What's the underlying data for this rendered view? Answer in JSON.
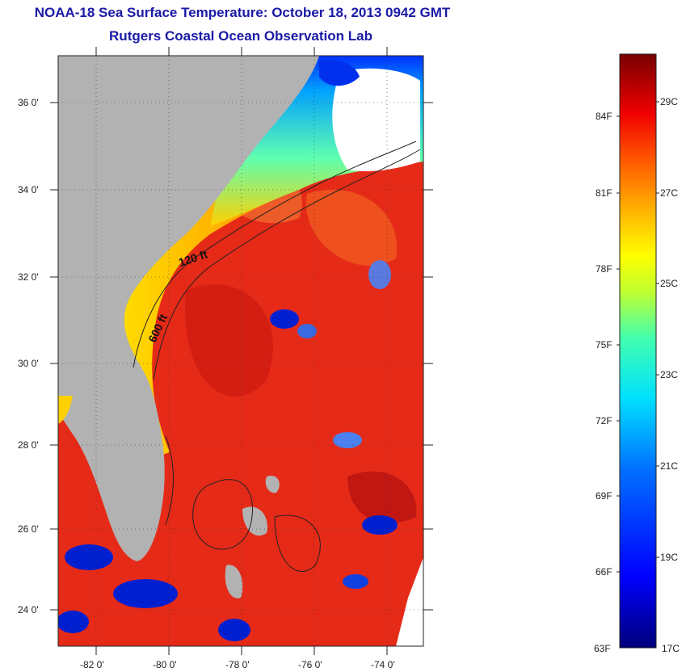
{
  "title": "NOAA-18 Sea Surface Temperature:  October 18, 2013 0942 GMT",
  "subtitle": "Rutgers Coastal Ocean Observation Lab",
  "map": {
    "lat_labels": [
      "36 0'",
      "34 0'",
      "32 0'",
      "30 0'",
      "28 0'",
      "26 0'",
      "24 0'"
    ],
    "lon_labels": [
      "-82 0'",
      "-80 0'",
      "-78 0'",
      "-76 0'",
      "-74 0'"
    ],
    "contours": [
      "120 ft",
      "600 ft"
    ],
    "colors": {
      "land": "#b2b2b2",
      "cloud": "#ffffff",
      "warm": "#e8281a"
    }
  },
  "colorbar": {
    "fahrenheit": [
      "84F",
      "81F",
      "78F",
      "75F",
      "72F",
      "69F",
      "66F",
      "63F"
    ],
    "celsius": [
      "29C",
      "27C",
      "25C",
      "23C",
      "21C",
      "19C",
      "17C"
    ]
  }
}
